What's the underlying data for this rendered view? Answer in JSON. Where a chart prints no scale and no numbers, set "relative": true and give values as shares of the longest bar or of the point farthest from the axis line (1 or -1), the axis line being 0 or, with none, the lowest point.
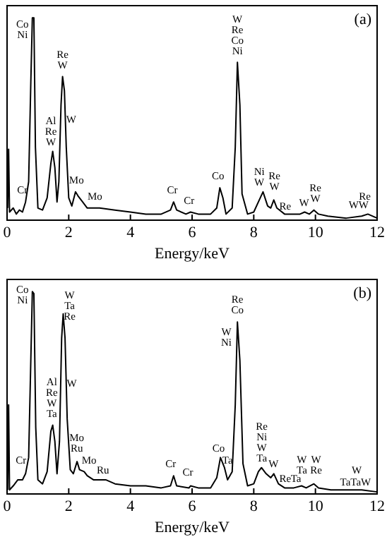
{
  "chart_data": [
    {
      "type": "line",
      "relative": true,
      "xlabel": "Energy/keV",
      "xlim": [
        0,
        12
      ],
      "xticks": [
        0,
        2,
        4,
        6,
        8,
        10,
        12
      ],
      "tick_labels": "x",
      "grid": false,
      "series": [
        {
          "color": "#000000",
          "x": [
            0.02,
            0.05,
            0.08,
            0.2,
            0.3,
            0.4,
            0.5,
            0.6,
            0.7,
            0.77,
            0.82,
            0.87,
            0.92,
            1.0,
            1.15,
            1.3,
            1.42,
            1.48,
            1.55,
            1.62,
            1.68,
            1.75,
            1.8,
            1.86,
            1.92,
            2.0,
            2.1,
            2.22,
            2.3,
            2.45,
            2.6,
            3.0,
            3.5,
            4.0,
            4.5,
            5.0,
            5.3,
            5.4,
            5.5,
            5.8,
            5.95,
            6.2,
            6.6,
            6.8,
            6.9,
            7.0,
            7.1,
            7.3,
            7.4,
            7.47,
            7.55,
            7.62,
            7.8,
            8.0,
            8.15,
            8.3,
            8.45,
            8.55,
            8.65,
            8.75,
            9.0,
            9.5,
            9.65,
            9.8,
            9.95,
            10.1,
            10.4,
            11.0,
            11.5,
            11.7,
            12.0
          ],
          "values": [
            0.06,
            0.35,
            0.04,
            0.06,
            0.03,
            0.05,
            0.04,
            0.09,
            0.19,
            0.68,
            1,
            1,
            0.36,
            0.06,
            0.05,
            0.11,
            0.28,
            0.34,
            0.26,
            0.09,
            0.19,
            0.57,
            0.71,
            0.64,
            0.36,
            0.11,
            0.07,
            0.14,
            0.12,
            0.09,
            0.06,
            0.06,
            0.05,
            0.04,
            0.03,
            0.03,
            0.05,
            0.09,
            0.05,
            0.03,
            0.04,
            0.03,
            0.03,
            0.06,
            0.16,
            0.11,
            0.03,
            0.06,
            0.36,
            0.78,
            0.57,
            0.13,
            0.03,
            0.04,
            0.09,
            0.14,
            0.07,
            0.06,
            0.1,
            0.06,
            0.03,
            0.03,
            0.04,
            0.03,
            0.05,
            0.03,
            0.02,
            0.01,
            0.02,
            0.03,
            0.01
          ]
        }
      ],
      "annotations": [
        "(a)",
        "Co\nNi",
        "Re",
        {
          "text": "Cr",
          "x": 0.5,
          "y": 0.11
        },
        {
          "text": "Al\nRe\nW",
          "x": 1.42,
          "y": 0.35
        },
        {
          "text": "Re\nW",
          "x": 1.8,
          "y": 0.73
        },
        {
          "text": "W",
          "x": 2.08,
          "y": 0.46
        },
        {
          "text": "Mo",
          "x": 2.25,
          "y": 0.16
        },
        {
          "text": "Mo",
          "x": 2.85,
          "y": 0.08
        },
        {
          "text": "Cr",
          "x": 5.36,
          "y": 0.11
        },
        {
          "text": "Cr",
          "x": 5.9,
          "y": 0.06
        },
        {
          "text": "Co",
          "x": 6.84,
          "y": 0.18
        },
        {
          "text": "W\nRe\nCo\nNi",
          "x": 7.47,
          "y": 0.8
        },
        {
          "text": "Ni\nW",
          "x": 8.18,
          "y": 0.15
        },
        {
          "text": "Re\nW",
          "x": 8.67,
          "y": 0.13
        },
        {
          "text": "Re",
          "x": 9.02,
          "y": 0.03
        },
        {
          "text": "W",
          "x": 9.63,
          "y": 0.05
        },
        {
          "text": "Re\nW",
          "x": 10.0,
          "y": 0.07
        },
        {
          "text": "WW",
          "x": 11.4,
          "y": 0.04
        }
      ]
    },
    {
      "type": "line",
      "relative": true,
      "xlabel": "Energy/keV",
      "xlim": [
        0,
        12
      ],
      "xticks": [
        0,
        2,
        4,
        6,
        8,
        10,
        12
      ],
      "tick_labels": "x",
      "grid": false,
      "series": [
        {
          "color": "#000000",
          "x": [
            0.02,
            0.05,
            0.08,
            0.2,
            0.35,
            0.5,
            0.6,
            0.7,
            0.77,
            0.82,
            0.87,
            0.93,
            1.0,
            1.15,
            1.3,
            1.42,
            1.48,
            1.55,
            1.62,
            1.7,
            1.77,
            1.82,
            1.88,
            1.95,
            2.05,
            2.15,
            2.27,
            2.35,
            2.5,
            2.6,
            2.8,
            3.2,
            3.5,
            4.0,
            4.5,
            5.0,
            5.3,
            5.4,
            5.5,
            5.9,
            5.95,
            6.2,
            6.6,
            6.8,
            6.92,
            7.05,
            7.15,
            7.3,
            7.4,
            7.47,
            7.55,
            7.65,
            7.8,
            8.0,
            8.15,
            8.25,
            8.4,
            8.55,
            8.65,
            8.8,
            9.0,
            9.3,
            9.55,
            9.7,
            9.95,
            10.1,
            10.5,
            11.0,
            11.5,
            12.0
          ],
          "values": [
            0.02,
            0.44,
            0.02,
            0.04,
            0.07,
            0.07,
            0.1,
            0.18,
            0.66,
            1,
            0.99,
            0.33,
            0.07,
            0.05,
            0.11,
            0.31,
            0.34,
            0.26,
            0.1,
            0.26,
            0.77,
            0.89,
            0.77,
            0.37,
            0.12,
            0.1,
            0.16,
            0.12,
            0.11,
            0.09,
            0.07,
            0.07,
            0.05,
            0.04,
            0.04,
            0.03,
            0.04,
            0.09,
            0.04,
            0.03,
            0.04,
            0.03,
            0.03,
            0.08,
            0.18,
            0.13,
            0.07,
            0.11,
            0.44,
            0.85,
            0.66,
            0.15,
            0.04,
            0.05,
            0.11,
            0.13,
            0.1,
            0.08,
            0.1,
            0.05,
            0.03,
            0.03,
            0.04,
            0.03,
            0.05,
            0.03,
            0.02,
            0.02,
            0.02,
            0.01
          ]
        }
      ],
      "annotations": [
        "(b)",
        "Co\nNi",
        "W\nNi",
        "W\nTa",
        "W",
        {
          "text": "Cr",
          "x": 0.45,
          "y": 0.13
        },
        {
          "text": "W\nTa\nRe",
          "x": 2.03,
          "y": 0.84
        },
        {
          "text": "Al\nRe\nW\nTa",
          "x": 1.45,
          "y": 0.36
        },
        {
          "text": "W",
          "x": 2.1,
          "y": 0.51
        },
        {
          "text": "Mo\nRu",
          "x": 2.26,
          "y": 0.19
        },
        {
          "text": "Mo",
          "x": 2.66,
          "y": 0.13
        },
        {
          "text": "Ru",
          "x": 3.11,
          "y": 0.08
        },
        {
          "text": "Cr",
          "x": 5.31,
          "y": 0.11
        },
        {
          "text": "Cr",
          "x": 5.86,
          "y": 0.07
        },
        {
          "text": "Co",
          "x": 6.86,
          "y": 0.19
        },
        {
          "text": "Ta",
          "x": 7.15,
          "y": 0.13
        },
        {
          "text": "Re\nCo",
          "x": 7.47,
          "y": 0.87
        },
        {
          "text": "Re\nNi\nW\nTa",
          "x": 8.26,
          "y": 0.14
        },
        {
          "text": "W",
          "x": 8.64,
          "y": 0.11
        },
        {
          "text": "Re",
          "x": 9.02,
          "y": 0.04
        },
        {
          "text": "Ta",
          "x": 9.37,
          "y": 0.04
        },
        {
          "text": "W\nRe",
          "x": 10.02,
          "y": 0.08
        },
        {
          "text": "TaTaW",
          "x": 11.3,
          "y": 0.02
        }
      ]
    }
  ]
}
